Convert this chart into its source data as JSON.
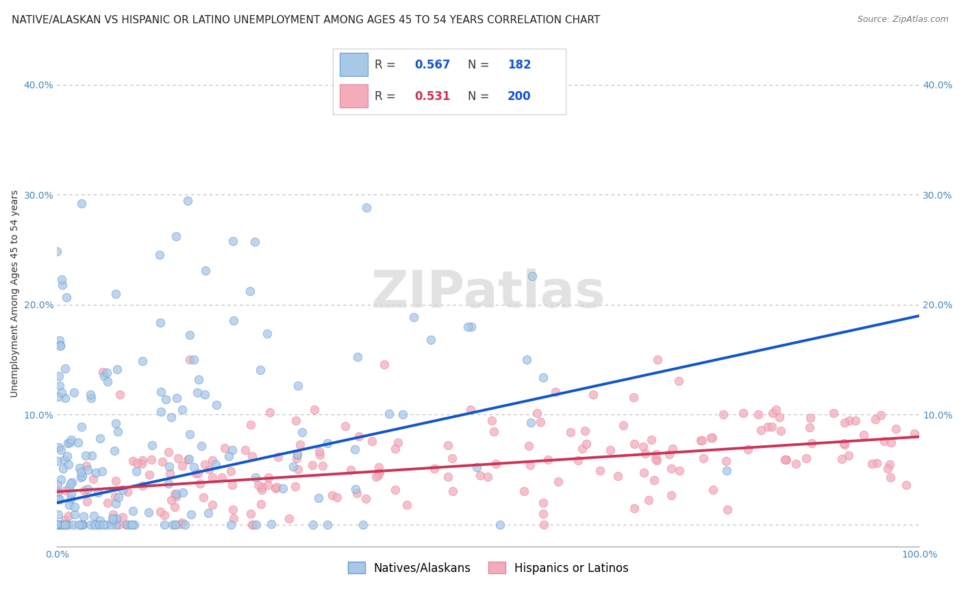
{
  "title": "NATIVE/ALASKAN VS HISPANIC OR LATINO UNEMPLOYMENT AMONG AGES 45 TO 54 YEARS CORRELATION CHART",
  "source": "Source: ZipAtlas.com",
  "ylabel": "Unemployment Among Ages 45 to 54 years",
  "xlim": [
    0,
    1.0
  ],
  "ylim": [
    -0.02,
    0.44
  ],
  "xticks": [
    0.0,
    0.2,
    0.4,
    0.6,
    0.8,
    1.0
  ],
  "xticklabels": [
    "0.0%",
    "",
    "",
    "",
    "",
    "100.0%"
  ],
  "yticks": [
    0.0,
    0.1,
    0.2,
    0.3,
    0.4
  ],
  "yticklabels": [
    "",
    "10.0%",
    "20.0%",
    "30.0%",
    "40.0%"
  ],
  "native_color": "#A8C8E8",
  "native_edge_color": "#6699CC",
  "hispanic_color": "#F4ACBC",
  "hispanic_edge_color": "#DD8899",
  "native_line_color": "#1155CC",
  "hispanic_line_color": "#CC3355",
  "R_native": 0.567,
  "N_native": 182,
  "R_hispanic": 0.531,
  "N_hispanic": 200,
  "watermark": "ZIPatlas",
  "background_color": "#ffffff",
  "grid_color": "#bbbbbb",
  "title_fontsize": 11,
  "axis_fontsize": 10,
  "tick_fontsize": 10,
  "tick_color": "#4488BB",
  "native_trend_start": 0.02,
  "native_trend_end": 0.19,
  "hispanic_trend_start": 0.03,
  "hispanic_trend_end": 0.08
}
